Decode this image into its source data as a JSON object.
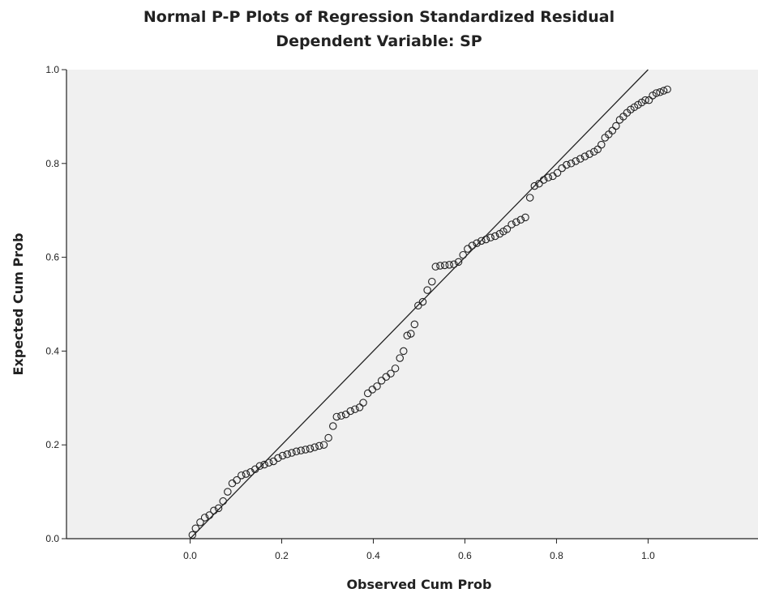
{
  "chart_data": {
    "type": "scatter",
    "title": "Normal P-P Plots of Regression Standardized Residual",
    "subtitle": "Dependent Variable: SP",
    "xlabel": "Observed Cum Prob",
    "ylabel": "Expected Cum Prob",
    "xlim": [
      -0.27,
      1.24
    ],
    "ylim": [
      0,
      1.0
    ],
    "x_ticks": [
      "0.0",
      "0.2",
      "0.4",
      "0.6",
      "0.8",
      "1.0"
    ],
    "y_ticks": [
      "0.0",
      "0.2",
      "0.4",
      "0.6",
      "0.8",
      "1.0"
    ],
    "grid": false,
    "background_color": "#f0f0f0",
    "reference_line": {
      "from": [
        0,
        0
      ],
      "to": [
        1,
        1
      ]
    },
    "points": [
      [
        0.005,
        0.008
      ],
      [
        0.012,
        0.022
      ],
      [
        0.022,
        0.035
      ],
      [
        0.032,
        0.045
      ],
      [
        0.042,
        0.05
      ],
      [
        0.052,
        0.06
      ],
      [
        0.062,
        0.065
      ],
      [
        0.072,
        0.08
      ],
      [
        0.082,
        0.1
      ],
      [
        0.092,
        0.118
      ],
      [
        0.102,
        0.125
      ],
      [
        0.112,
        0.135
      ],
      [
        0.122,
        0.138
      ],
      [
        0.132,
        0.142
      ],
      [
        0.142,
        0.148
      ],
      [
        0.152,
        0.155
      ],
      [
        0.162,
        0.158
      ],
      [
        0.172,
        0.162
      ],
      [
        0.182,
        0.165
      ],
      [
        0.192,
        0.172
      ],
      [
        0.202,
        0.177
      ],
      [
        0.212,
        0.18
      ],
      [
        0.222,
        0.183
      ],
      [
        0.232,
        0.186
      ],
      [
        0.242,
        0.188
      ],
      [
        0.252,
        0.19
      ],
      [
        0.262,
        0.192
      ],
      [
        0.272,
        0.195
      ],
      [
        0.282,
        0.198
      ],
      [
        0.292,
        0.2
      ],
      [
        0.302,
        0.215
      ],
      [
        0.312,
        0.24
      ],
      [
        0.32,
        0.26
      ],
      [
        0.33,
        0.262
      ],
      [
        0.34,
        0.265
      ],
      [
        0.35,
        0.272
      ],
      [
        0.36,
        0.276
      ],
      [
        0.37,
        0.28
      ],
      [
        0.378,
        0.29
      ],
      [
        0.388,
        0.31
      ],
      [
        0.398,
        0.318
      ],
      [
        0.408,
        0.325
      ],
      [
        0.418,
        0.337
      ],
      [
        0.428,
        0.345
      ],
      [
        0.438,
        0.352
      ],
      [
        0.448,
        0.363
      ],
      [
        0.458,
        0.385
      ],
      [
        0.466,
        0.4
      ],
      [
        0.474,
        0.433
      ],
      [
        0.482,
        0.437
      ],
      [
        0.49,
        0.457
      ],
      [
        0.498,
        0.497
      ],
      [
        0.508,
        0.505
      ],
      [
        0.518,
        0.53
      ],
      [
        0.528,
        0.548
      ],
      [
        0.536,
        0.58
      ],
      [
        0.546,
        0.582
      ],
      [
        0.556,
        0.583
      ],
      [
        0.566,
        0.584
      ],
      [
        0.576,
        0.585
      ],
      [
        0.586,
        0.59
      ],
      [
        0.596,
        0.605
      ],
      [
        0.606,
        0.618
      ],
      [
        0.616,
        0.625
      ],
      [
        0.626,
        0.63
      ],
      [
        0.636,
        0.635
      ],
      [
        0.646,
        0.638
      ],
      [
        0.656,
        0.642
      ],
      [
        0.666,
        0.645
      ],
      [
        0.676,
        0.65
      ],
      [
        0.684,
        0.655
      ],
      [
        0.692,
        0.66
      ],
      [
        0.702,
        0.67
      ],
      [
        0.712,
        0.675
      ],
      [
        0.722,
        0.68
      ],
      [
        0.732,
        0.685
      ],
      [
        0.742,
        0.727
      ],
      [
        0.752,
        0.752
      ],
      [
        0.762,
        0.757
      ],
      [
        0.772,
        0.765
      ],
      [
        0.782,
        0.77
      ],
      [
        0.792,
        0.773
      ],
      [
        0.802,
        0.78
      ],
      [
        0.812,
        0.79
      ],
      [
        0.822,
        0.797
      ],
      [
        0.832,
        0.8
      ],
      [
        0.842,
        0.805
      ],
      [
        0.852,
        0.81
      ],
      [
        0.862,
        0.815
      ],
      [
        0.872,
        0.82
      ],
      [
        0.882,
        0.825
      ],
      [
        0.89,
        0.83
      ],
      [
        0.898,
        0.84
      ],
      [
        0.906,
        0.855
      ],
      [
        0.914,
        0.862
      ],
      [
        0.922,
        0.87
      ],
      [
        0.93,
        0.88
      ],
      [
        0.938,
        0.893
      ],
      [
        0.946,
        0.9
      ],
      [
        0.954,
        0.908
      ],
      [
        0.962,
        0.915
      ],
      [
        0.97,
        0.92
      ],
      [
        0.978,
        0.925
      ],
      [
        0.986,
        0.93
      ],
      [
        0.994,
        0.935
      ],
      [
        1.002,
        0.935
      ],
      [
        1.01,
        0.945
      ],
      [
        1.018,
        0.95
      ],
      [
        1.026,
        0.952
      ],
      [
        1.034,
        0.955
      ],
      [
        1.042,
        0.958
      ]
    ]
  }
}
